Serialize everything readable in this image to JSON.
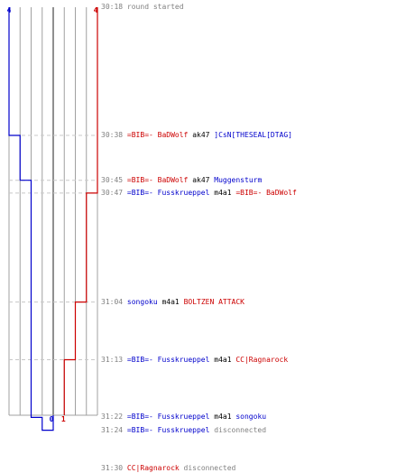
{
  "colors": {
    "blue_team": "#0000cc",
    "red_team": "#cc0000",
    "grid": "#a0a0a0",
    "dash": "#c8c8c8",
    "time": "#808080",
    "text": "#000000",
    "neutral": "#808080"
  },
  "scores": {
    "blue_start": "4",
    "red_start": "4",
    "blue_end": "0",
    "red_end": "1"
  },
  "events": [
    {
      "time": "30:18",
      "t": 18,
      "parts": [
        {
          "text": "round started",
          "team": "neutral"
        }
      ]
    },
    {
      "time": "30:38",
      "t": 38,
      "parts": [
        {
          "text": "=BIB=- BaDWolf",
          "team": "red"
        },
        {
          "text": "ak47",
          "team": "none"
        },
        {
          "text": "]CsN[THESEAL[DTAG]",
          "team": "blue"
        }
      ]
    },
    {
      "time": "30:45",
      "t": 45,
      "parts": [
        {
          "text": "=BIB=- BaDWolf",
          "team": "red"
        },
        {
          "text": "ak47",
          "team": "none"
        },
        {
          "text": "Muggensturm",
          "team": "blue"
        }
      ]
    },
    {
      "time": "30:47",
      "t": 47,
      "parts": [
        {
          "text": "=BIB=- Fusskrueppel",
          "team": "blue"
        },
        {
          "text": "m4a1",
          "team": "none"
        },
        {
          "text": "=BIB=- BaDWolf",
          "team": "red"
        }
      ]
    },
    {
      "time": "31:04",
      "t": 64,
      "parts": [
        {
          "text": "songoku",
          "team": "blue"
        },
        {
          "text": "m4a1",
          "team": "none"
        },
        {
          "text": "BOLTZEN ATTACK",
          "team": "red"
        }
      ]
    },
    {
      "time": "31:13",
      "t": 73,
      "parts": [
        {
          "text": "=BIB=- Fusskrueppel",
          "team": "blue"
        },
        {
          "text": "m4a1",
          "team": "none"
        },
        {
          "text": "CC|Ragnarock",
          "team": "red"
        }
      ]
    },
    {
      "time": "31:22",
      "t": 82,
      "parts": [
        {
          "text": "=BIB=- Fusskrueppel",
          "team": "blue"
        },
        {
          "text": "m4a1",
          "team": "none"
        },
        {
          "text": "songoku",
          "team": "blue"
        }
      ]
    },
    {
      "time": "31:24",
      "t": 84,
      "parts": [
        {
          "text": "=BIB=- Fusskrueppel",
          "team": "blue"
        },
        {
          "text": "disconnected",
          "team": "neutral"
        }
      ]
    },
    {
      "time": "31:30",
      "t": 90,
      "parts": [
        {
          "text": "CC|Ragnarock",
          "team": "red"
        },
        {
          "text": "disconnected",
          "team": "neutral"
        }
      ]
    }
  ],
  "blue_steps": [
    {
      "t": 38,
      "count": 3
    },
    {
      "t": 45,
      "count": 2
    },
    {
      "t": 82,
      "count": 1
    },
    {
      "t": 84,
      "count": 0
    }
  ],
  "red_steps": [
    {
      "t": 47,
      "count": 3
    },
    {
      "t": 64,
      "count": 2
    },
    {
      "t": 73,
      "count": 1
    }
  ]
}
